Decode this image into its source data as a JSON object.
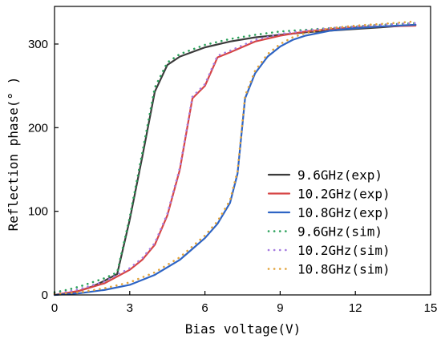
{
  "chart_data": {
    "type": "line",
    "title": "",
    "xlabel": "Bias voltage(V)",
    "ylabel": "Reflection phase(° )",
    "xlim": [
      0,
      15
    ],
    "ylim": [
      0,
      345
    ],
    "xticks": [
      0,
      3,
      6,
      9,
      12,
      15
    ],
    "yticks": [
      0,
      100,
      200,
      300
    ],
    "grid": false,
    "legend_position": "center-right",
    "series": [
      {
        "name": "9.6GHz(exp)",
        "color": "#3b3b3b",
        "style": "solid",
        "x": [
          0,
          0.5,
          1.0,
          1.5,
          2.0,
          2.5,
          3.0,
          3.5,
          4.0,
          4.5,
          5.0,
          6.0,
          7.0,
          8.0,
          9.0,
          10.0,
          11.0,
          12.0,
          13.0,
          14.4
        ],
        "y": [
          0,
          2,
          5,
          10,
          17,
          25,
          90,
          165,
          243,
          275,
          285,
          296,
          303,
          308,
          311,
          314,
          316,
          318,
          320,
          323
        ]
      },
      {
        "name": "10.2GHz(exp)",
        "color": "#d64545",
        "style": "solid",
        "x": [
          0,
          1.0,
          2.0,
          3.0,
          3.5,
          4.0,
          4.5,
          5.0,
          5.5,
          6.0,
          6.5,
          7.0,
          8.0,
          9.0,
          10.0,
          11.0,
          12.0,
          13.0,
          14.4
        ],
        "y": [
          0,
          5,
          14,
          30,
          42,
          60,
          95,
          150,
          235,
          250,
          284,
          290,
          303,
          310,
          315,
          318,
          320,
          321,
          322
        ]
      },
      {
        "name": "10.8GHz(exp)",
        "color": "#2e64c4",
        "style": "solid",
        "x": [
          0,
          1.0,
          2.0,
          3.0,
          4.0,
          5.0,
          5.5,
          6.0,
          6.5,
          7.0,
          7.3,
          7.6,
          8.0,
          8.5,
          9.0,
          9.5,
          10.0,
          11.0,
          12.0,
          13.0,
          14.4
        ],
        "y": [
          0,
          2,
          6,
          12,
          24,
          42,
          55,
          68,
          85,
          110,
          145,
          235,
          265,
          285,
          297,
          305,
          310,
          316,
          319,
          321,
          323
        ]
      },
      {
        "name": "9.6GHz(sim)",
        "color": "#2aa15a",
        "style": "dotted",
        "x": [
          0,
          0.5,
          1.0,
          1.5,
          2.0,
          2.5,
          3.0,
          3.5,
          4.0,
          4.5,
          5.0,
          6.0,
          7.0,
          8.0,
          9.0,
          10.0,
          11.0,
          12.0,
          13.0,
          14.4
        ],
        "y": [
          3,
          6,
          10,
          15,
          20,
          27,
          93,
          170,
          248,
          278,
          288,
          299,
          306,
          311,
          315,
          317,
          319,
          321,
          323,
          325
        ]
      },
      {
        "name": "10.2GHz(sim)",
        "color": "#a57be0",
        "style": "dotted",
        "x": [
          0,
          1.0,
          2.0,
          3.0,
          3.5,
          4.0,
          4.5,
          5.0,
          5.5,
          6.0,
          6.5,
          7.0,
          8.0,
          9.0,
          10.0,
          11.0,
          12.0,
          13.0,
          14.4
        ],
        "y": [
          1,
          7,
          16,
          32,
          44,
          62,
          97,
          152,
          237,
          252,
          286,
          292,
          305,
          312,
          316,
          319,
          321,
          323,
          325
        ]
      },
      {
        "name": "10.8GHz(sim)",
        "color": "#e2a33a",
        "style": "dotted",
        "x": [
          0,
          1.0,
          2.0,
          3.0,
          4.0,
          5.0,
          5.5,
          6.0,
          6.5,
          7.0,
          7.3,
          7.6,
          8.0,
          8.5,
          9.0,
          9.5,
          10.0,
          11.0,
          12.0,
          13.0,
          14.4
        ],
        "y": [
          1,
          3,
          8,
          15,
          27,
          45,
          58,
          71,
          88,
          113,
          148,
          238,
          268,
          288,
          300,
          308,
          313,
          319,
          322,
          324,
          327
        ]
      }
    ]
  }
}
